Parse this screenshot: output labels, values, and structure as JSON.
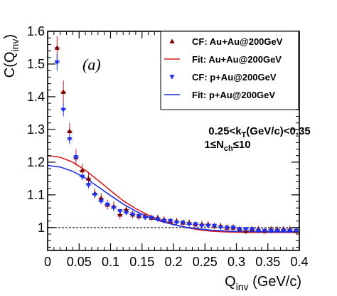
{
  "chart_data": {
    "type": "scatter",
    "title": "",
    "xlabel": {
      "main": "Q",
      "sub": "inv",
      "tail": " (GeV/c)"
    },
    "ylabel": {
      "main": "C(Q",
      "sub": "inv",
      "tail": ")"
    },
    "xlim": [
      0,
      0.4
    ],
    "ylim": [
      0.93,
      1.6
    ],
    "xticks": [
      0,
      0.05,
      0.1,
      0.15,
      0.2,
      0.25,
      0.3,
      0.35,
      0.4
    ],
    "xtick_labels": [
      "0",
      "0.05",
      "0.1",
      "0.15",
      "0.2",
      "0.25",
      "0.3",
      "0.35",
      "0.4"
    ],
    "yticks": [
      1,
      1.1,
      1.2,
      1.3,
      1.4,
      1.5,
      1.6
    ],
    "ytick_labels": [
      "1",
      "1.1",
      "1.2",
      "1.3",
      "1.4",
      "1.5",
      "1.6"
    ],
    "reference_line": 1.0,
    "panel_label": "(a)",
    "annotation_lines": [
      {
        "parts": [
          "0.25<k",
          "T",
          "(GeV/c)<0.35"
        ]
      },
      {
        "parts": [
          "1≤N",
          "ch",
          "≤10"
        ]
      }
    ],
    "legend_position": "top-right",
    "series": [
      {
        "name": "CF: Au+Au@200GeV",
        "kind": "points",
        "marker": "triangle-up",
        "color": "#7a0000",
        "errcolor": "#b02020",
        "x": [
          0.015,
          0.025,
          0.035,
          0.045,
          0.055,
          0.065,
          0.075,
          0.085,
          0.095,
          0.105,
          0.115,
          0.125,
          0.135,
          0.145,
          0.155,
          0.165,
          0.175,
          0.185,
          0.195,
          0.205,
          0.215,
          0.225,
          0.235,
          0.245,
          0.255,
          0.265,
          0.275,
          0.285,
          0.295,
          0.305,
          0.315,
          0.325,
          0.335,
          0.345,
          0.355,
          0.365,
          0.375,
          0.385,
          0.395
        ],
        "y": [
          1.55,
          1.415,
          1.295,
          1.215,
          1.175,
          1.15,
          1.105,
          1.09,
          1.07,
          1.065,
          1.04,
          1.055,
          1.04,
          1.035,
          1.035,
          1.03,
          1.03,
          1.025,
          1.02,
          1.02,
          1.015,
          1.015,
          1.01,
          1.01,
          1.01,
          1.005,
          1.005,
          1.0,
          1.0,
          0.995,
          0.99,
          0.995,
          0.995,
          0.99,
          0.995,
          0.995,
          0.995,
          0.995,
          0.99
        ],
        "err": [
          0.035,
          0.035,
          0.025,
          0.025,
          0.02,
          0.02,
          0.015,
          0.015,
          0.015,
          0.015,
          0.015,
          0.012,
          0.012,
          0.012,
          0.01,
          0.01,
          0.01,
          0.01,
          0.01,
          0.01,
          0.01,
          0.01,
          0.01,
          0.01,
          0.01,
          0.01,
          0.01,
          0.01,
          0.01,
          0.01,
          0.01,
          0.01,
          0.01,
          0.01,
          0.01,
          0.01,
          0.01,
          0.01,
          0.01
        ]
      },
      {
        "name": "Fit: Au+Au@200GeV",
        "kind": "line",
        "color": "#d42020",
        "x": [
          0.0,
          0.02,
          0.04,
          0.06,
          0.08,
          0.1,
          0.12,
          0.14,
          0.16,
          0.18,
          0.2,
          0.22,
          0.24,
          0.26,
          0.28,
          0.3,
          0.32,
          0.34,
          0.36,
          0.38,
          0.4
        ],
        "y": [
          1.22,
          1.215,
          1.2,
          1.175,
          1.145,
          1.113,
          1.082,
          1.058,
          1.038,
          1.022,
          1.01,
          1.0,
          0.993,
          0.989,
          0.987,
          0.986,
          0.985,
          0.985,
          0.985,
          0.985,
          0.985
        ]
      },
      {
        "name": "CF: p+Au@200GeV",
        "kind": "points",
        "marker": "triangle-down",
        "color": "#1f2fe6",
        "errcolor": "#1f2fe6",
        "x": [
          0.015,
          0.025,
          0.035,
          0.045,
          0.055,
          0.065,
          0.075,
          0.085,
          0.095,
          0.105,
          0.115,
          0.125,
          0.135,
          0.145,
          0.155,
          0.165,
          0.175,
          0.185,
          0.195,
          0.205,
          0.215,
          0.225,
          0.235,
          0.245,
          0.255,
          0.265,
          0.275,
          0.285,
          0.295,
          0.305,
          0.315,
          0.325,
          0.335,
          0.345,
          0.355,
          0.365,
          0.375,
          0.385,
          0.395
        ],
        "y": [
          1.505,
          1.36,
          1.27,
          1.215,
          1.155,
          1.13,
          1.1,
          1.08,
          1.07,
          1.06,
          1.05,
          1.045,
          1.04,
          1.035,
          1.03,
          1.03,
          1.025,
          1.02,
          1.02,
          1.015,
          1.015,
          1.01,
          1.01,
          1.005,
          1.005,
          1.005,
          1.0,
          1.0,
          1.0,
          0.995,
          0.995,
          0.995,
          0.99,
          0.99,
          0.99,
          0.99,
          0.99,
          0.99,
          0.99
        ],
        "err": [
          0.025,
          0.02,
          0.015,
          0.012,
          0.01,
          0.01,
          0.008,
          0.008,
          0.008,
          0.007,
          0.007,
          0.007,
          0.006,
          0.006,
          0.006,
          0.006,
          0.006,
          0.006,
          0.006,
          0.006,
          0.006,
          0.006,
          0.006,
          0.006,
          0.006,
          0.006,
          0.006,
          0.006,
          0.006,
          0.006,
          0.006,
          0.006,
          0.006,
          0.006,
          0.006,
          0.006,
          0.006,
          0.006,
          0.006
        ]
      },
      {
        "name": "Fit: p+Au@200GeV",
        "kind": "line",
        "color": "#1f2fe6",
        "x": [
          0.0,
          0.02,
          0.04,
          0.06,
          0.08,
          0.1,
          0.12,
          0.14,
          0.16,
          0.18,
          0.2,
          0.22,
          0.24,
          0.26,
          0.28,
          0.3,
          0.32,
          0.34,
          0.36,
          0.38,
          0.4
        ],
        "y": [
          1.19,
          1.185,
          1.172,
          1.151,
          1.125,
          1.098,
          1.072,
          1.05,
          1.032,
          1.019,
          1.009,
          1.001,
          0.996,
          0.992,
          0.99,
          0.988,
          0.988,
          0.987,
          0.987,
          0.987,
          0.987
        ]
      }
    ]
  }
}
